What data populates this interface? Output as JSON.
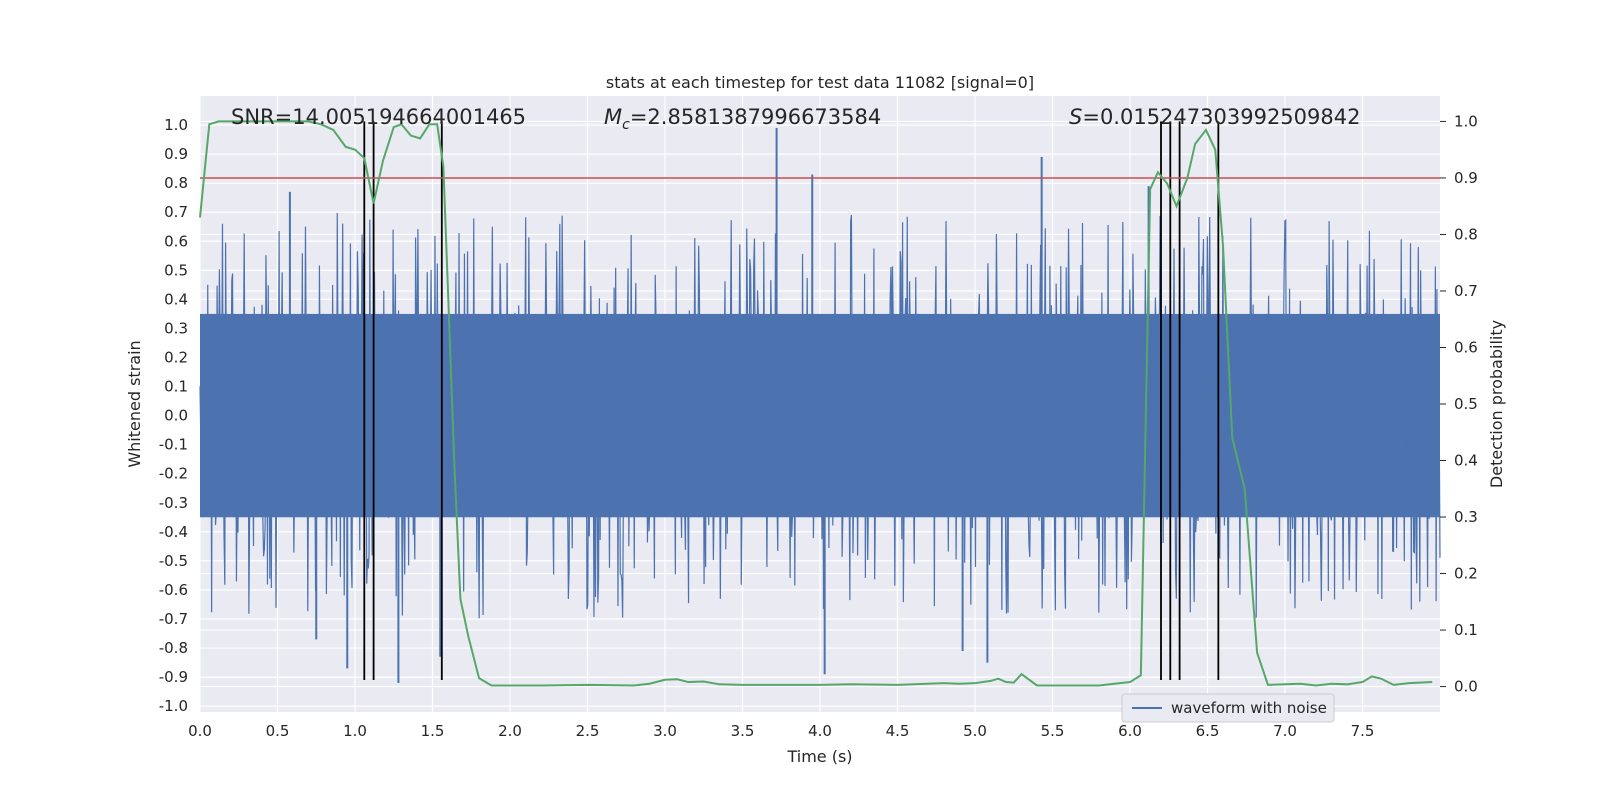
{
  "chart_data": {
    "type": "line",
    "title": "stats at each timestep for test data 11082 [signal=0]",
    "xlabel": "Time (s)",
    "ylabel": "Whitened strain",
    "y2label": "Detection probability",
    "xlim": [
      0.0,
      8.0
    ],
    "ylim": [
      -1.02,
      1.1
    ],
    "y2lim": [
      -0.045,
      1.045
    ],
    "xticks": [
      "0.0",
      "0.5",
      "1.0",
      "1.5",
      "2.0",
      "2.5",
      "3.0",
      "3.5",
      "4.0",
      "4.5",
      "5.0",
      "5.5",
      "6.0",
      "6.5",
      "7.0",
      "7.5"
    ],
    "yticks": [
      "-1.0",
      "-0.9",
      "-0.8",
      "-0.7",
      "-0.6",
      "-0.5",
      "-0.4",
      "-0.3",
      "-0.2",
      "-0.1",
      "0.0",
      "0.1",
      "0.2",
      "0.3",
      "0.4",
      "0.5",
      "0.6",
      "0.7",
      "0.8",
      "0.9",
      "1.0"
    ],
    "y2ticks": [
      "0.0",
      "0.1",
      "0.2",
      "0.3",
      "0.4",
      "0.5",
      "0.6",
      "0.7",
      "0.8",
      "0.9",
      "1.0"
    ],
    "grid": true,
    "legend_position": "lower-right",
    "annotations": {
      "snr": "SNR=14.005194664001465",
      "mc_symbol": "M",
      "mc_subscript": "c",
      "mc_value": "=2.8581387996673584",
      "s_symbol": "S",
      "s_value": "=0.015247303992509842"
    },
    "series": [
      {
        "name": "waveform with noise",
        "axis": "left",
        "color": "#4c72b0",
        "style": "noise",
        "amplitude_band": [
          -0.35,
          0.35
        ],
        "x_range": [
          0.0,
          8.0
        ],
        "peaks": [
          {
            "x": 3.72,
            "y": 0.99
          },
          {
            "x": 3.95,
            "y": 0.83
          },
          {
            "x": 5.43,
            "y": 0.89
          },
          {
            "x": 4.03,
            "y": -0.89
          },
          {
            "x": 5.08,
            "y": -0.85
          },
          {
            "x": 1.28,
            "y": -0.92
          },
          {
            "x": 0.58,
            "y": 0.77
          },
          {
            "x": 4.92,
            "y": -0.81
          },
          {
            "x": 0.95,
            "y": -0.87
          },
          {
            "x": 1.55,
            "y": -0.83
          },
          {
            "x": 6.12,
            "y": 0.79
          },
          {
            "x": 0.75,
            "y": -0.77
          }
        ]
      },
      {
        "name": "",
        "axis": "right",
        "color": "#55a868",
        "style": "line",
        "x": [
          0.0,
          0.06,
          0.12,
          0.2,
          0.3,
          0.4,
          0.5,
          0.6,
          0.7,
          0.78,
          0.86,
          0.94,
          1.0,
          1.06,
          1.12,
          1.18,
          1.25,
          1.3,
          1.36,
          1.42,
          1.48,
          1.53,
          1.57,
          1.6,
          1.64,
          1.68,
          1.73,
          1.8,
          1.88,
          2.0,
          2.2,
          2.5,
          2.8,
          2.9,
          3.0,
          3.08,
          3.15,
          3.25,
          3.35,
          3.5,
          3.7,
          4.0,
          4.2,
          4.5,
          4.8,
          4.9,
          5.0,
          5.1,
          5.15,
          5.2,
          5.25,
          5.3,
          5.4,
          5.5,
          5.8,
          6.0,
          6.07,
          6.13,
          6.18,
          6.24,
          6.3,
          6.37,
          6.42,
          6.49,
          6.55,
          6.6,
          6.66,
          6.74,
          6.82,
          6.89,
          7.0,
          7.1,
          7.2,
          7.3,
          7.4,
          7.5,
          7.56,
          7.62,
          7.7,
          7.8,
          7.95
        ],
        "y": [
          0.83,
          0.995,
          1.0,
          1.0,
          1.0,
          1.0,
          1.0,
          1.0,
          1.0,
          0.995,
          0.985,
          0.955,
          0.95,
          0.935,
          0.855,
          0.93,
          0.99,
          0.995,
          0.975,
          0.97,
          0.995,
          0.995,
          0.92,
          0.7,
          0.4,
          0.155,
          0.09,
          0.015,
          0.002,
          0.002,
          0.002,
          0.003,
          0.002,
          0.005,
          0.012,
          0.013,
          0.008,
          0.009,
          0.004,
          0.003,
          0.003,
          0.003,
          0.004,
          0.003,
          0.006,
          0.005,
          0.006,
          0.01,
          0.014,
          0.008,
          0.007,
          0.022,
          0.002,
          0.002,
          0.002,
          0.008,
          0.02,
          0.88,
          0.91,
          0.89,
          0.85,
          0.9,
          0.96,
          0.985,
          0.95,
          0.78,
          0.44,
          0.35,
          0.06,
          0.003,
          0.004,
          0.005,
          0.002,
          0.005,
          0.004,
          0.008,
          0.018,
          0.014,
          0.003,
          0.006,
          0.008
        ]
      }
    ],
    "hlines": [
      {
        "axis": "right",
        "y": 0.9,
        "color": "#c44e52"
      }
    ],
    "vlines": {
      "color": "#000000",
      "x": [
        1.06,
        1.12,
        1.56,
        6.2,
        6.26,
        6.32,
        6.57
      ],
      "y_from": -0.91,
      "y_to": 1.0
    }
  }
}
